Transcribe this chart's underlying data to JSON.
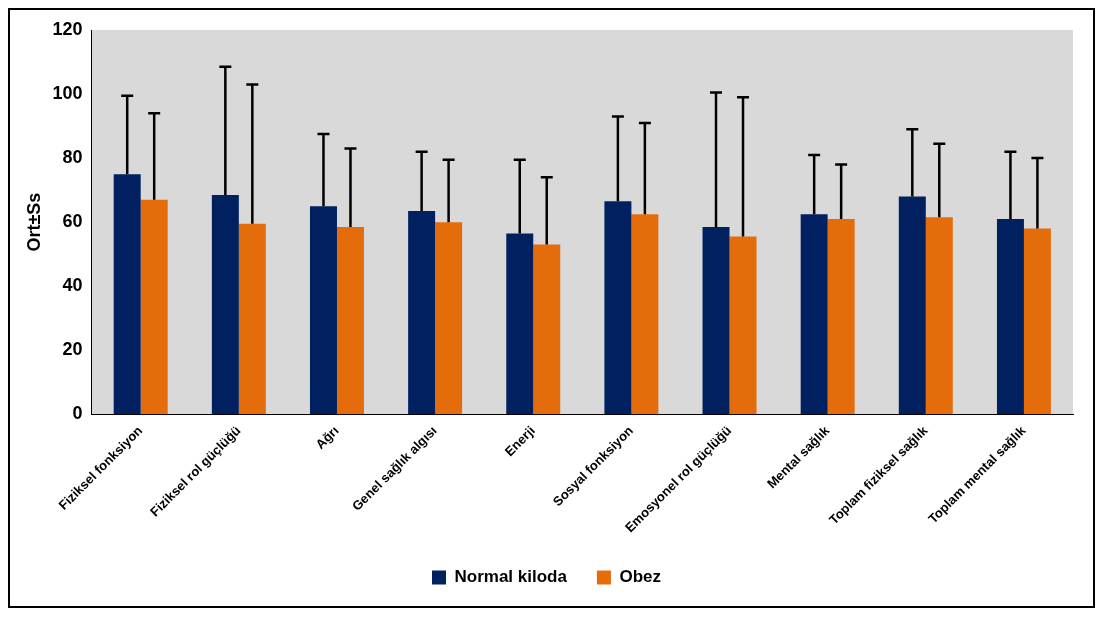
{
  "chart_data": {
    "type": "bar",
    "ylabel": "Ort±Ss",
    "categories": [
      "Fiziksel fonksiyon",
      "Fiziksel rol güçlüğü",
      "Ağrı",
      "Genel sağlık algısı",
      "Enerji",
      "Sosyal fonksiyon",
      "Emosyonel rol güçlüğü",
      "Mental sağlık",
      "Toplam fiziksel sağlık",
      "Toplam mental sağlık"
    ],
    "series": [
      {
        "name": "Normal kiloda",
        "color": "#012060",
        "values": [
          75,
          68.5,
          65,
          63.5,
          56.5,
          66.5,
          58.5,
          62.5,
          68,
          61
        ],
        "errors": [
          [
            75,
            99.5
          ],
          [
            68.5,
            108.5
          ],
          [
            65,
            87.5
          ],
          [
            63.5,
            82
          ],
          [
            56.5,
            79.5
          ],
          [
            66.5,
            93
          ],
          [
            58.5,
            100.5
          ],
          [
            62.5,
            81
          ],
          [
            68,
            89
          ],
          [
            61,
            82
          ]
        ]
      },
      {
        "name": "Obez",
        "color": "#e46c0a",
        "values": [
          67,
          59.5,
          58.5,
          60,
          53,
          62.5,
          55.5,
          61,
          61.5,
          58
        ],
        "errors": [
          [
            67,
            94
          ],
          [
            59.5,
            103
          ],
          [
            58.5,
            83
          ],
          [
            60,
            79.5
          ],
          [
            53,
            74
          ],
          [
            62.5,
            91
          ],
          [
            55.5,
            99
          ],
          [
            61,
            78
          ],
          [
            61.5,
            84.5
          ],
          [
            58,
            80
          ]
        ]
      }
    ],
    "ylim": [
      0,
      120
    ],
    "yticks": [
      0,
      20,
      40,
      60,
      80,
      100,
      120
    ],
    "grid": false,
    "legend": "bottom"
  }
}
